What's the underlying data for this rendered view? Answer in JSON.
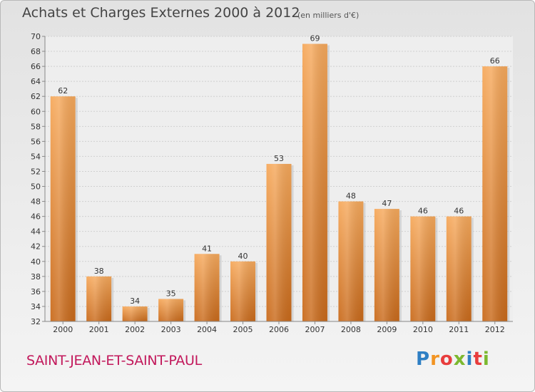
{
  "header": {
    "title": "Achats et Charges Externes 2000 à 2012",
    "subtitle": "(en milliers d'€)"
  },
  "footer": {
    "commune": "SAINT-JEAN-ET-SAINT-PAUL",
    "logo": "Proxiti",
    "logo_letters": [
      {
        "char": "P",
        "color": "#2e7fc4"
      },
      {
        "char": "r",
        "color": "#f29422"
      },
      {
        "char": "o",
        "color": "#e83d3d"
      },
      {
        "char": "x",
        "color": "#7cb82f"
      },
      {
        "char": "i",
        "color": "#2e7fc4"
      },
      {
        "char": "t",
        "color": "#e83d3d"
      },
      {
        "char": "i",
        "color": "#7cb82f"
      }
    ]
  },
  "chart_data": {
    "type": "bar",
    "title": "Achats et Charges Externes 2000 à 2012",
    "subtitle": "(en milliers d'€)",
    "categories": [
      "2000",
      "2001",
      "2002",
      "2003",
      "2004",
      "2005",
      "2006",
      "2007",
      "2008",
      "2009",
      "2010",
      "2011",
      "2012"
    ],
    "values": [
      62,
      38,
      34,
      35,
      41,
      40,
      53,
      69,
      48,
      47,
      46,
      46,
      66
    ],
    "ylim": [
      32,
      70
    ],
    "ytick_step": 2,
    "yticks": [
      32,
      34,
      36,
      38,
      40,
      42,
      44,
      46,
      48,
      50,
      52,
      54,
      56,
      58,
      60,
      62,
      64,
      66,
      68,
      70
    ],
    "grid": true,
    "bar_color": "#e8822d",
    "xlabel": "",
    "ylabel": ""
  }
}
